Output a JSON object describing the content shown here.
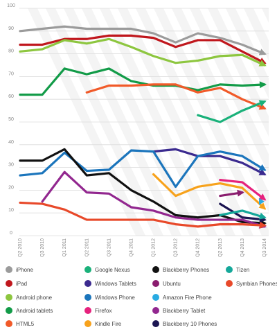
{
  "chart_data": {
    "type": "line",
    "categories": [
      "Q2 2010",
      "Q3 2010",
      "Q1 2011",
      "Q2 2011",
      "Q3 2011",
      "Q4 2011",
      "Q1 2012",
      "Q3 2012",
      "Q4 2012",
      "Q2 2013",
      "Q4 2013",
      "Q3 2014"
    ],
    "ylim": [
      0,
      100
    ],
    "yticks": [
      0,
      10,
      20,
      30,
      40,
      50,
      60,
      70,
      80,
      90,
      100
    ],
    "grid": true,
    "legend_position": "bottom",
    "series": [
      {
        "name": "iPhone",
        "color": "#9b9b9b",
        "values": [
          90,
          91,
          92,
          91,
          91,
          91,
          89,
          85,
          89,
          87,
          84,
          80
        ]
      },
      {
        "name": "iPad",
        "color": "#c0171d",
        "values": [
          84,
          84,
          86.5,
          86.5,
          88,
          88,
          87,
          83,
          86,
          86,
          81,
          76
        ]
      },
      {
        "name": "Android phone",
        "color": "#8dc63f",
        "values": [
          81,
          82,
          86,
          84.5,
          86.5,
          83,
          79,
          76,
          77,
          79,
          79.5,
          75
        ]
      },
      {
        "name": "Android tablets",
        "color": "#129b48",
        "values": [
          62,
          62,
          73.5,
          71,
          73.5,
          68,
          66,
          66,
          64,
          66.5,
          66,
          66.5
        ]
      },
      {
        "name": "HTML5",
        "color": "#f15a29",
        "values": [
          null,
          null,
          null,
          63,
          66,
          66,
          66.5,
          66.5,
          63,
          65,
          60,
          56
        ]
      },
      {
        "name": "Google Nexus",
        "color": "#1ab17a",
        "values": [
          null,
          null,
          null,
          null,
          null,
          null,
          null,
          null,
          53,
          50,
          55,
          59
        ]
      },
      {
        "name": "Windows Tablets",
        "color": "#3b2a8f",
        "values": [
          null,
          null,
          null,
          null,
          null,
          null,
          37,
          38,
          35,
          35,
          32,
          27
        ]
      },
      {
        "name": "Windows Phone",
        "color": "#1b75bc",
        "values": [
          26.5,
          27.5,
          36.5,
          28.5,
          29,
          37.5,
          37,
          21.5,
          35,
          37,
          35,
          29
        ]
      },
      {
        "name": "Firefox",
        "color": "#e6227d",
        "values": [
          null,
          null,
          null,
          null,
          null,
          null,
          null,
          null,
          null,
          24.5,
          23.5,
          16
        ]
      },
      {
        "name": "Kindle Fire",
        "color": "#f7a21c",
        "values": [
          null,
          null,
          null,
          null,
          null,
          null,
          27,
          17.5,
          21.5,
          23,
          21,
          12
        ]
      },
      {
        "name": "Blackberry Phones",
        "color": "#111111",
        "values": [
          33,
          33,
          38,
          26.5,
          27.5,
          20,
          15,
          9,
          8,
          9,
          6,
          5.5
        ]
      },
      {
        "name": "Ubuntu",
        "color": "#8a1c6e",
        "values": [
          null,
          null,
          null,
          null,
          null,
          null,
          null,
          null,
          null,
          17.5,
          19,
          null
        ]
      },
      {
        "name": "Amazon Fire Phone",
        "color": "#29abe2",
        "values": [
          null,
          null,
          null,
          null,
          null,
          null,
          null,
          null,
          null,
          null,
          null,
          15
        ]
      },
      {
        "name": "Blackberry Tablet",
        "color": "#92278f",
        "values": [
          null,
          15,
          28,
          19,
          18.5,
          12.5,
          11,
          8,
          7,
          7,
          7,
          4
        ]
      },
      {
        "name": "Blackberry 10 Phones",
        "color": "#1c1652",
        "values": [
          null,
          null,
          null,
          null,
          null,
          null,
          null,
          null,
          null,
          14,
          8,
          7
        ]
      },
      {
        "name": "Tizen",
        "color": "#15a89a",
        "values": [
          null,
          null,
          null,
          null,
          null,
          null,
          null,
          null,
          null,
          9,
          11,
          8
        ]
      },
      {
        "name": "Symbian Phones",
        "color": "#e8492a",
        "values": [
          14.5,
          14,
          11.5,
          7,
          7,
          7,
          7,
          5,
          4,
          5,
          5,
          4.5
        ]
      }
    ]
  }
}
